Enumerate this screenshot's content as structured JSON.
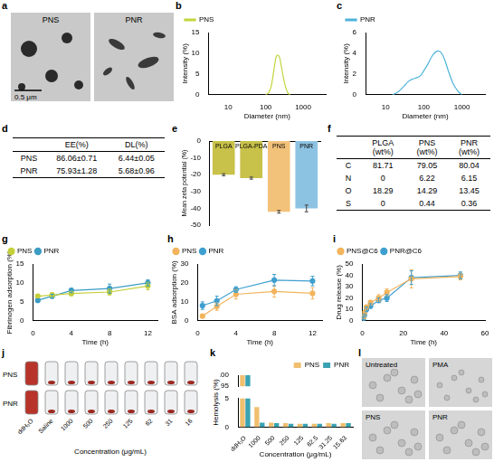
{
  "chart_data": [
    {
      "panel": "b",
      "type": "line",
      "log": "x",
      "marker": "none",
      "x": [
        100,
        120,
        140,
        160,
        180,
        200,
        230,
        260,
        300,
        350,
        400,
        450
      ],
      "series": [
        {
          "name": "PNS",
          "color": "#c3d53c",
          "values": [
            0,
            0.5,
            2,
            5,
            8,
            9.5,
            9.2,
            7,
            4,
            1.5,
            0.3,
            0
          ]
        }
      ],
      "xlabel": "Diameter (nm)",
      "ylabel": "Intensity (%)",
      "xlim": [
        3,
        4000
      ],
      "xticks": [
        10,
        100,
        1000
      ],
      "ylim": [
        0,
        15
      ],
      "yticks": [
        0,
        5,
        10,
        15
      ],
      "grid": false,
      "legend": "top-left"
    },
    {
      "panel": "c",
      "type": "line",
      "log": "x",
      "marker": "none",
      "x": [
        15,
        20,
        30,
        40,
        50,
        60,
        80,
        100,
        130,
        170,
        220,
        280,
        350,
        450,
        600,
        800,
        1000
      ],
      "series": [
        {
          "name": "PNR",
          "color": "#4fb3d9",
          "values": [
            0,
            0.2,
            0.8,
            1.3,
            1.5,
            1.6,
            1.8,
            2.3,
            3,
            3.8,
            4.2,
            4.1,
            3.4,
            2.2,
            1,
            0.3,
            0
          ]
        }
      ],
      "xlabel": "Diameter (nm)",
      "ylabel": "Intensity (%)",
      "xlim": [
        3,
        4000
      ],
      "xticks": [
        10,
        100,
        1000
      ],
      "ylim": [
        0,
        6
      ],
      "yticks": [
        0,
        2,
        4,
        6
      ],
      "grid": false,
      "legend": "top-left"
    },
    {
      "panel": "e",
      "type": "bar",
      "categories": [
        "PLGA",
        "PLGA-PDA",
        "PNS",
        "PNR"
      ],
      "values": [
        -20,
        -22,
        -42,
        -40
      ],
      "errors": [
        0.6,
        0.6,
        0.8,
        2
      ],
      "colors": [
        "#c8c14a",
        "#c8c14a",
        "#f3c27a",
        "#8dc3e2"
      ],
      "ylabel": "Mean zeta potential (%)",
      "ylim": [
        -50,
        0
      ],
      "yticks": [
        -50,
        -40,
        -30,
        -20,
        -10,
        0
      ],
      "grid": false
    },
    {
      "panel": "g",
      "type": "line",
      "marker": "circle",
      "x": [
        0.5,
        2,
        4,
        8,
        12
      ],
      "series": [
        {
          "name": "PNS",
          "color": "#c5cf3a",
          "values": [
            6.5,
            6.8,
            7.2,
            7.6,
            9.2
          ],
          "errors": [
            0.4,
            0.6,
            0.5,
            0.8,
            1
          ]
        },
        {
          "name": "PNR",
          "color": "#3b9cc4",
          "values": [
            5.4,
            6.5,
            8,
            8.5,
            10
          ],
          "errors": [
            0.4,
            0.5,
            0.6,
            1.2,
            0.8
          ]
        }
      ],
      "xlabel": "Time (h)",
      "ylabel": "Fibrinogen adsorption (%)",
      "xlim": [
        0,
        13
      ],
      "xticks": [
        0,
        4,
        8,
        12
      ],
      "ylim": [
        0,
        15
      ],
      "yticks": [
        0,
        5,
        10,
        15
      ],
      "grid": false,
      "legend": "top-left"
    },
    {
      "panel": "h",
      "type": "line",
      "marker": "circle",
      "x": [
        0.5,
        2,
        4,
        8,
        12
      ],
      "series": [
        {
          "name": "PNS",
          "color": "#f2b45c",
          "values": [
            2.5,
            7.5,
            14,
            15.5,
            14.5
          ],
          "errors": [
            1,
            2,
            2.5,
            3,
            3
          ]
        },
        {
          "name": "PNR",
          "color": "#3f9fcf",
          "values": [
            8,
            10.5,
            16.5,
            21.5,
            21
          ],
          "errors": [
            2,
            2.5,
            1.5,
            3,
            2.5
          ]
        }
      ],
      "xlabel": "Time (h)",
      "ylabel": "BSA adsorption (%)",
      "xlim": [
        0,
        13
      ],
      "xticks": [
        0,
        4,
        8,
        12
      ],
      "ylim": [
        0,
        30
      ],
      "yticks": [
        0,
        10,
        20,
        30
      ],
      "grid": false,
      "legend": "top-left"
    },
    {
      "panel": "i",
      "type": "line",
      "marker": "circle",
      "x": [
        0.5,
        1,
        2,
        4,
        8,
        12,
        24,
        48
      ],
      "series": [
        {
          "name": "PNS@C6",
          "color": "#f2b45c",
          "values": [
            3,
            7,
            12,
            16,
            20,
            25,
            37,
            39
          ],
          "errors": [
            1,
            1.5,
            2,
            2,
            3,
            3,
            8,
            3
          ]
        },
        {
          "name": "PNR@C6",
          "color": "#3f9fcf",
          "values": [
            2,
            5,
            10,
            13,
            18,
            20,
            38,
            40
          ],
          "errors": [
            1,
            1,
            2,
            2,
            2,
            3,
            6,
            3
          ]
        }
      ],
      "xlabel": "Time (h)",
      "ylabel": "Drug release (%)",
      "xlim": [
        0,
        60
      ],
      "xticks": [
        0,
        20,
        40,
        60
      ],
      "ylim": [
        0,
        50
      ],
      "yticks": [
        0,
        10,
        20,
        30,
        40,
        50
      ],
      "grid": false,
      "legend": "top-left"
    },
    {
      "panel": "k",
      "type": "bar",
      "categories": [
        "ddH₂O",
        "1000",
        "500",
        "250",
        "125",
        "62.5",
        "31.25",
        "15.63"
      ],
      "series": [
        {
          "name": "PNS",
          "color": "#f0c070",
          "values": [
            100,
            3.5,
            0.8,
            0.7,
            0.6,
            0.6,
            0.7,
            0.7
          ]
        },
        {
          "name": "PNR",
          "color": "#3aa3b3",
          "values": [
            100,
            0.8,
            0.7,
            0.6,
            0.6,
            0.6,
            0.6,
            0.7
          ]
        }
      ],
      "xlabel": "Concentration (μg/mL)",
      "ylabel": "Hemolysis (%)",
      "ylim": [
        0,
        100
      ],
      "yticks": [
        0,
        5,
        95,
        100
      ],
      "grid": false,
      "legend": "top-right"
    }
  ],
  "tables": [
    {
      "panel": "d",
      "header": [
        "EE(%)",
        "DL(%)"
      ],
      "rows": [
        {
          "label": "PNS",
          "cells": [
            "86.06±0.71",
            "6.44±0.05"
          ]
        },
        {
          "label": "PNR",
          "cells": [
            "75.93±1.28",
            "5.68±0.96"
          ]
        }
      ]
    },
    {
      "panel": "f",
      "header": [
        "PLGA (wt%)",
        "PNS (wt%)",
        "PNR (wt%)"
      ],
      "rows": [
        {
          "label": "C",
          "cells": [
            "81.71",
            "79.05",
            "80.04"
          ]
        },
        {
          "label": "N",
          "cells": [
            "0",
            "6.22",
            "6.15"
          ]
        },
        {
          "label": "O",
          "cells": [
            "18.29",
            "14.29",
            "13.45"
          ]
        },
        {
          "label": "S",
          "cells": [
            "0",
            "0.44",
            "0.36"
          ]
        }
      ]
    }
  ],
  "images": [
    {
      "panel": "a",
      "images": [
        "PNS",
        "PNR"
      ],
      "scale_bar": "0.5 μm"
    },
    {
      "panel": "j",
      "rows": [
        "PNS",
        "PNR"
      ],
      "columns": [
        "ddH₂O",
        "Saline",
        "1000",
        "500",
        "250",
        "125",
        "62",
        "31",
        "16"
      ],
      "xlabel": "Concentration (μg/mL)"
    },
    {
      "panel": "l",
      "images": [
        "Untreated",
        "PMA",
        "PNS",
        "PNR"
      ]
    }
  ]
}
